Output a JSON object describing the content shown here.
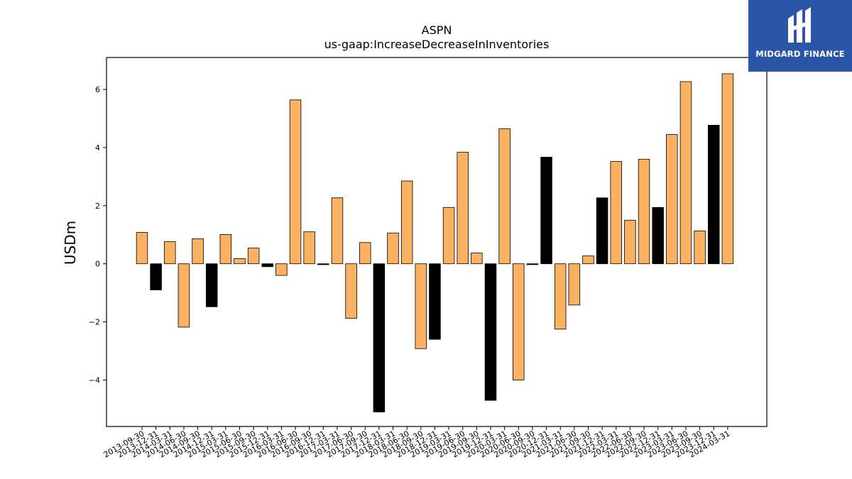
{
  "chart_data": {
    "type": "bar",
    "title": "ASPN",
    "subtitle": "us-gaap:IncreaseDecreaseInInventories",
    "xlabel": "",
    "ylabel": "USDm",
    "ylim": [
      -5.6,
      7.1
    ],
    "yticks": [
      -4,
      -2,
      0,
      2,
      4,
      6
    ],
    "grid": false,
    "categories": [
      "2013-09-30",
      "2013-12-31",
      "2014-03-31",
      "2014-06-30",
      "2014-09-30",
      "2014-12-31",
      "2015-03-31",
      "2015-06-30",
      "2015-09-30",
      "2015-12-31",
      "2016-03-31",
      "2016-06-30",
      "2016-09-30",
      "2016-12-31",
      "2017-03-31",
      "2017-06-30",
      "2017-09-30",
      "2017-12-31",
      "2018-03-31",
      "2018-06-30",
      "2018-09-30",
      "2018-12-31",
      "2019-03-31",
      "2019-06-30",
      "2019-09-30",
      "2019-12-31",
      "2020-03-31",
      "2020-06-30",
      "2020-09-30",
      "2020-12-31",
      "2021-03-31",
      "2021-06-30",
      "2021-09-30",
      "2021-12-31",
      "2022-03-31",
      "2022-06-30",
      "2022-09-30",
      "2022-12-31",
      "2023-03-31",
      "2023-06-30",
      "2023-09-30",
      "2023-12-31",
      "2024-03-31"
    ],
    "values": [
      1.08,
      -0.9,
      0.76,
      -2.18,
      0.86,
      -1.48,
      1.01,
      0.18,
      0.54,
      -0.1,
      -0.4,
      5.64,
      1.1,
      -0.03,
      2.27,
      -1.88,
      0.73,
      -5.1,
      1.06,
      2.85,
      -2.92,
      -2.6,
      1.94,
      3.84,
      0.37,
      -4.7,
      4.65,
      -4.0,
      -0.03,
      3.67,
      -2.25,
      -1.42,
      0.27,
      2.27,
      3.52,
      1.5,
      3.6,
      1.94,
      4.45,
      6.27,
      1.13,
      4.77,
      6.54
    ],
    "bar_colors": [
      "#fbb162",
      "#000000",
      "#fbb162",
      "#fbb162",
      "#fbb162",
      "#000000",
      "#fbb162",
      "#fbb162",
      "#fbb162",
      "#000000",
      "#fbb162",
      "#fbb162",
      "#fbb162",
      "#000000",
      "#fbb162",
      "#fbb162",
      "#fbb162",
      "#000000",
      "#fbb162",
      "#fbb162",
      "#fbb162",
      "#000000",
      "#fbb162",
      "#fbb162",
      "#fbb162",
      "#000000",
      "#fbb162",
      "#fbb162",
      "#000000",
      "#000000",
      "#fbb162",
      "#fbb162",
      "#fbb162",
      "#000000",
      "#fbb162",
      "#fbb162",
      "#fbb162",
      "#000000",
      "#fbb162",
      "#fbb162",
      "#fbb162",
      "#000000",
      "#fbb162"
    ]
  },
  "logo": {
    "text": "MIDGARD FINANCE",
    "background": "#2b56a8"
  }
}
